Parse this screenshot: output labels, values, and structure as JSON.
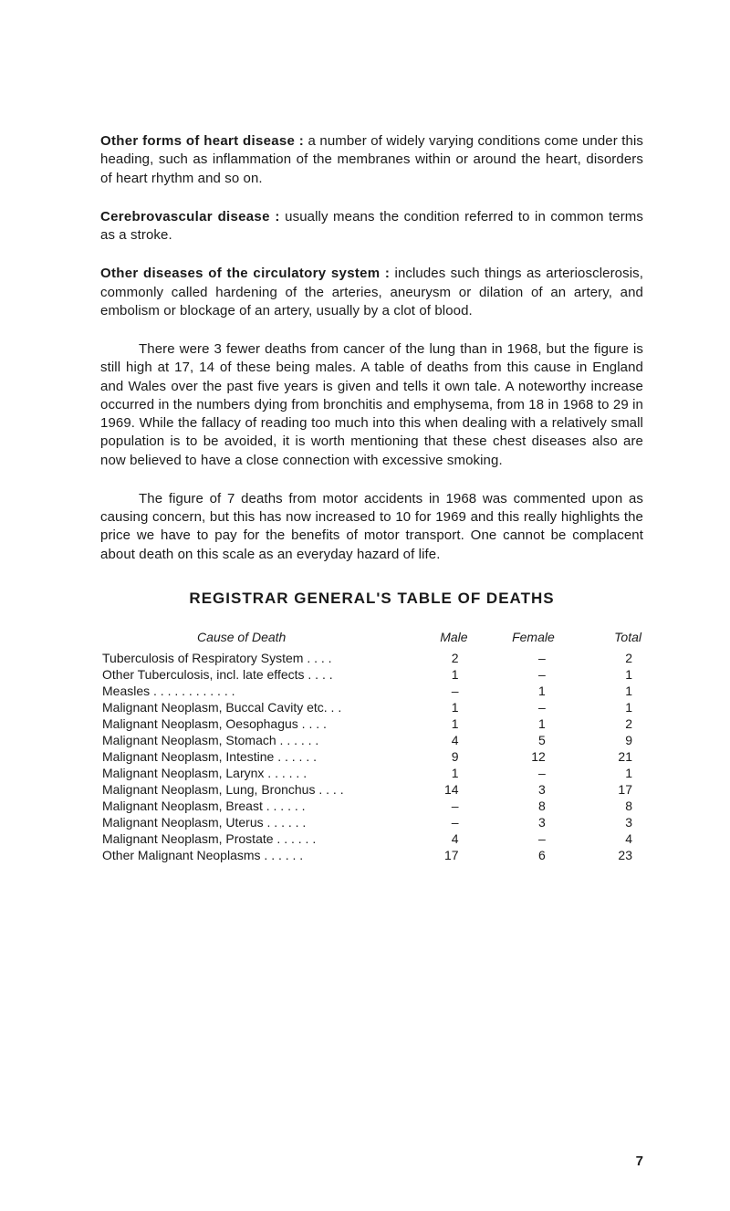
{
  "paragraphs": {
    "p1": {
      "lead": "Other forms of heart disease :",
      "body": " a number of widely varying conditions come under this heading, such as inflammation of the membranes within or around the heart, disorders of heart rhythm and so on."
    },
    "p2": {
      "lead": "Cerebrovascular disease :",
      "body": " usually means the condition referred to in common terms as a stroke."
    },
    "p3": {
      "lead": "Other diseases of the circulatory system :",
      "body": " includes such things as arteriosclerosis, commonly called hardening of the arteries, aneurysm or dilation of an artery, and embolism or blockage of an artery, usually by a clot of blood."
    },
    "p4": "There were 3 fewer deaths from cancer of the lung than in 1968, but the figure is still high at 17, 14 of these being males. A table of deaths from this cause in England and Wales over the past five years is given and tells it own tale. A noteworthy increase occurred in the numbers dying from bronchitis and emphysema, from 18 in 1968 to 29 in 1969. While the fallacy of reading too much into this when dealing with a relatively small population is to be avoided, it is worth mentioning that these chest diseases also are now believed to have a close connection with excessive smoking.",
    "p5": "The figure of 7 deaths from motor accidents in 1968 was commented upon as causing concern, but this has now increased to 10 for 1969 and this really highlights the price we have to pay for the benefits of motor transport. One cannot be complacent about death on this scale as an everyday hazard of life."
  },
  "table": {
    "title": "REGISTRAR GENERAL'S TABLE OF DEATHS",
    "headers": {
      "cause": "Cause of Death",
      "male": "Male",
      "female": "Female",
      "total": "Total"
    },
    "rows": [
      {
        "cause": "Tuberculosis of Respiratory System   . .    . .",
        "male": "2",
        "female": "–",
        "total": "2"
      },
      {
        "cause": "Other Tuberculosis, incl. late effects   . .    . .",
        "male": "1",
        "female": "–",
        "total": "1"
      },
      {
        "cause": "Measles      . .      . .      . .      . .      . .    . .",
        "male": "–",
        "female": "1",
        "total": "1"
      },
      {
        "cause": "Malignant Neoplasm, Buccal Cavity etc.    . .",
        "male": "1",
        "female": "–",
        "total": "1"
      },
      {
        "cause": "Malignant Neoplasm, Oesophagus     . .    . .",
        "male": "1",
        "female": "1",
        "total": "2"
      },
      {
        "cause": "Malignant Neoplasm, Stomach  . .    . .    . .",
        "male": "4",
        "female": "5",
        "total": "9"
      },
      {
        "cause": "Malignant Neoplasm, Intestine   . .    . .    . .",
        "male": "9",
        "female": "12",
        "total": "21"
      },
      {
        "cause": "Malignant Neoplasm, Larynx      . .    . .    . .",
        "male": "1",
        "female": "–",
        "total": "1"
      },
      {
        "cause": "Malignant Neoplasm, Lung, Bronchus  . .    . .",
        "male": "14",
        "female": "3",
        "total": "17"
      },
      {
        "cause": "Malignant Neoplasm, Breast       . .    . .    . .",
        "male": "–",
        "female": "8",
        "total": "8"
      },
      {
        "cause": "Malignant Neoplasm, Uterus       . .    . .    . .",
        "male": "–",
        "female": "3",
        "total": "3"
      },
      {
        "cause": "Malignant Neoplasm, Prostate    . .    . .    . .",
        "male": "4",
        "female": "–",
        "total": "4"
      },
      {
        "cause": "Other Malignant Neoplasms       . .    . .    . .",
        "male": "17",
        "female": "6",
        "total": "23"
      }
    ]
  },
  "page_number": "7",
  "colors": {
    "text": "#1a1a1a",
    "background": "#ffffff"
  }
}
